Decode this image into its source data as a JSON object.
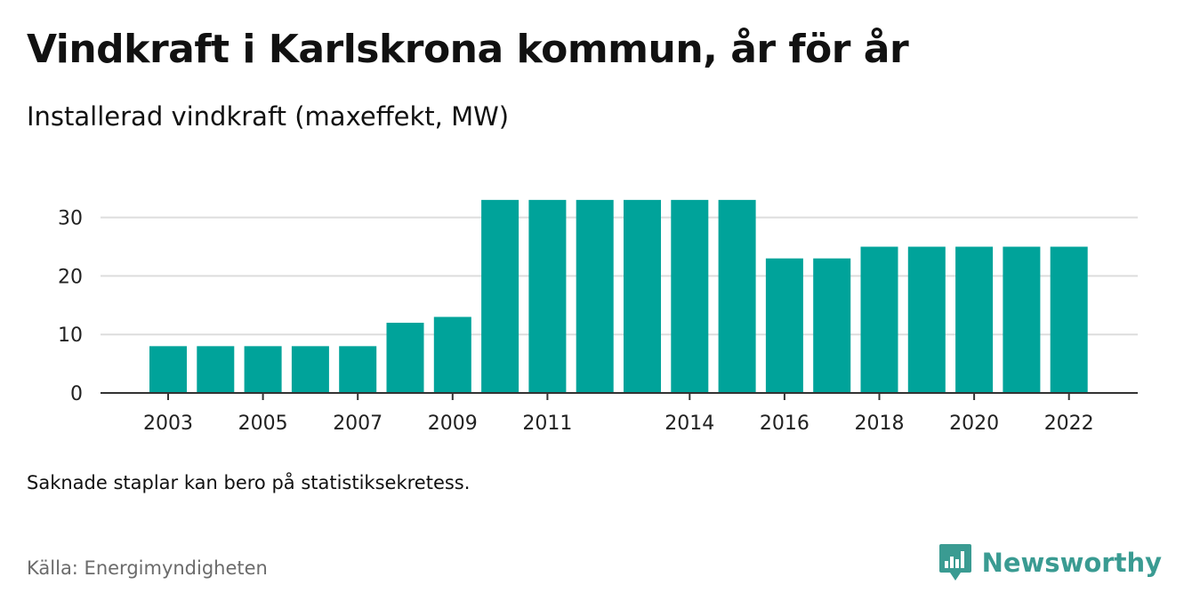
{
  "title": "Vindkraft i Karlskrona kommun, år för år",
  "subtitle": "Installerad vindkraft (maxeffekt, MW)",
  "footnote": "Saknade staplar kan bero på statistiksekretess.",
  "source": "Källa: Energimyndigheten",
  "brand": {
    "name": "Newsworthy",
    "icon": "newsworthy-logo-icon",
    "color": "#3a9b92"
  },
  "chart_data": {
    "type": "bar",
    "categories": [
      2003,
      2004,
      2005,
      2006,
      2007,
      2008,
      2009,
      2010,
      2011,
      2012,
      2013,
      2014,
      2015,
      2016,
      2017,
      2018,
      2019,
      2020,
      2021,
      2022
    ],
    "values": [
      8,
      8,
      8,
      8,
      8,
      12,
      13,
      33,
      33,
      33,
      33,
      33,
      33,
      23,
      23,
      25,
      25,
      25,
      25,
      25
    ],
    "x_tick_labels": [
      "2003",
      "2005",
      "2007",
      "2009",
      "2011",
      "2014",
      "2016",
      "2018",
      "2020",
      "2022"
    ],
    "y_ticks": [
      0,
      10,
      20,
      30
    ],
    "ylim": [
      0,
      35
    ],
    "grid": true,
    "bar_color": "#00a39a",
    "xlabel": "",
    "ylabel": ""
  }
}
